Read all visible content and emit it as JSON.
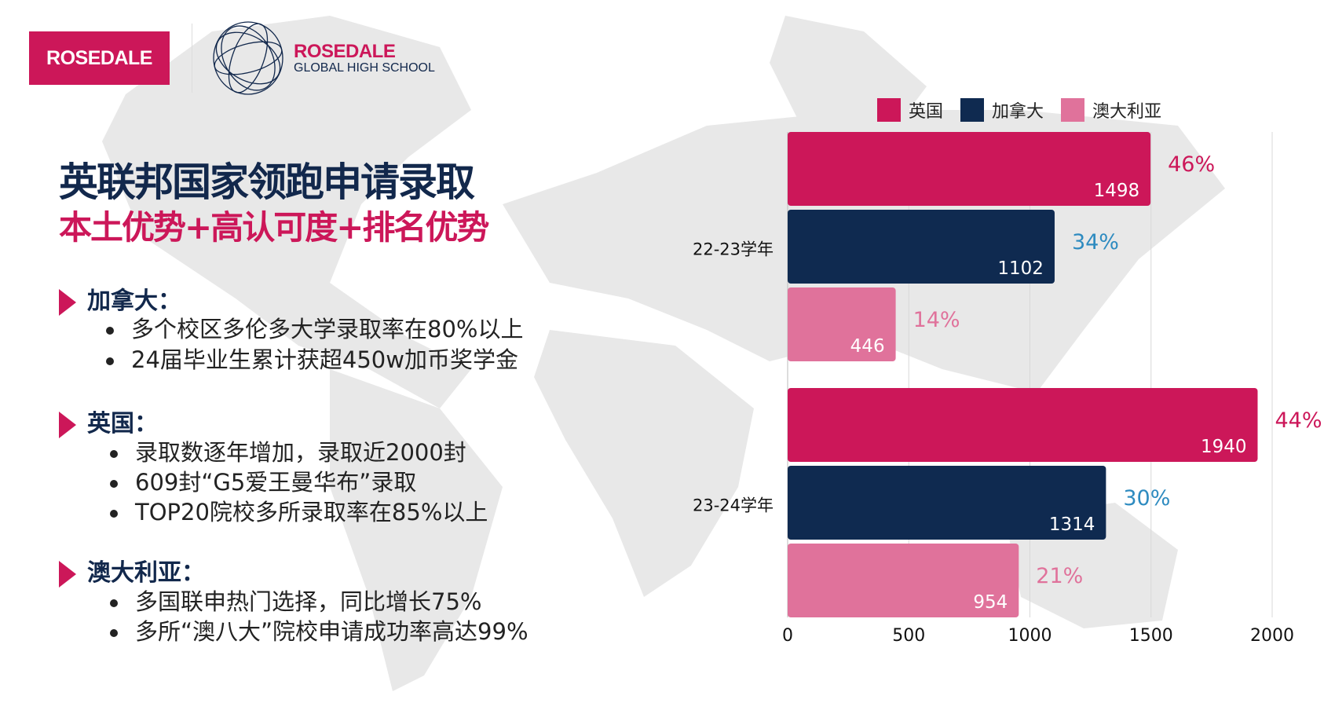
{
  "logo": {
    "box_text": "ROSEDALE",
    "brand_name": "ROSEDALE",
    "brand_sub": "GLOBAL HIGH SCHOOL"
  },
  "title": "英联邦国家领跑申请录取",
  "subtitle": "本土优势+高认可度+排名优势",
  "sections": [
    {
      "heading": "加拿大：",
      "bullets": [
        "多个校区多伦多大学录取率在80%以上",
        "24届毕业生累计获超450w加币奖学金"
      ]
    },
    {
      "heading": "英国：",
      "bullets": [
        "录取数逐年增加，录取近2000封",
        "609封“G5爱王曼华布”录取",
        "TOP20院校多所录取率在85%以上"
      ]
    },
    {
      "heading": "澳大利亚：",
      "bullets": [
        "多国联申热门选择，同比增长75%",
        "多所“澳八大”院校申请成功率高达99%"
      ]
    }
  ],
  "colors": {
    "uk": "#cc1759",
    "canada": "#0f2a50",
    "australia": "#e0729b",
    "canada_pct": "#2e8bc0",
    "navy": "#12284c"
  },
  "chart_data": {
    "type": "bar",
    "orientation": "horizontal",
    "categories": [
      "22-23学年",
      "23-24学年"
    ],
    "series": [
      {
        "name": "英国",
        "values": [
          1498,
          1940
        ],
        "percent_labels": [
          "46%",
          "44%"
        ],
        "color": "#cc1759",
        "pct_color": "#cc1759"
      },
      {
        "name": "加拿大",
        "values": [
          1102,
          1314
        ],
        "percent_labels": [
          "34%",
          "30%"
        ],
        "color": "#0f2a50",
        "pct_color": "#2e8bc0"
      },
      {
        "name": "澳大利亚",
        "values": [
          446,
          954
        ],
        "percent_labels": [
          "14%",
          "21%"
        ],
        "color": "#e0729b",
        "pct_color": "#e0729b"
      }
    ],
    "xlim": [
      0,
      2000
    ],
    "xticks": [
      "0",
      "500",
      "1000",
      "1500",
      "2000"
    ],
    "grid": true,
    "legend": "top"
  }
}
